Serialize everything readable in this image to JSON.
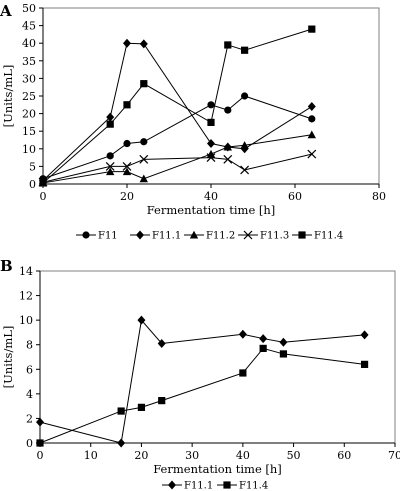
{
  "chart_data": [
    {
      "type": "line",
      "panel_label": "A",
      "xlabel": "Fermentation time [h]",
      "ylabel": "[Units/mL]",
      "xlim": [
        0,
        80
      ],
      "ylim": [
        0,
        50
      ],
      "xticks": [
        0,
        20,
        40,
        60,
        80
      ],
      "yticks": [
        0,
        5,
        10,
        15,
        20,
        25,
        30,
        35,
        40,
        45,
        50
      ],
      "grid": false,
      "legend_position": "bottom",
      "series": [
        {
          "name": "F11",
          "marker": "circle",
          "x": [
            0,
            16,
            20,
            24,
            40,
            44,
            48,
            64
          ],
          "y": [
            1.5,
            8,
            11.5,
            12,
            22.5,
            21,
            25,
            18.5
          ]
        },
        {
          "name": "F11.1",
          "marker": "diamond",
          "x": [
            0,
            16,
            20,
            24,
            40,
            44,
            48,
            64
          ],
          "y": [
            1,
            19,
            40,
            39.8,
            11.5,
            10.5,
            10,
            22
          ]
        },
        {
          "name": "F11.2",
          "marker": "triangle",
          "x": [
            0,
            16,
            20,
            24,
            40,
            44,
            48,
            64
          ],
          "y": [
            0.3,
            3.5,
            3.5,
            1.5,
            8.5,
            10.5,
            11,
            14
          ]
        },
        {
          "name": "F11.3",
          "marker": "x",
          "x": [
            0,
            16,
            20,
            24,
            40,
            44,
            48,
            64
          ],
          "y": [
            0.5,
            5,
            5,
            7,
            7.5,
            7,
            4,
            8.5
          ]
        },
        {
          "name": "F11.4",
          "marker": "square",
          "x": [
            0,
            16,
            20,
            24,
            40,
            44,
            48,
            64
          ],
          "y": [
            0.3,
            17,
            22.5,
            28.5,
            17.5,
            39.5,
            38,
            44
          ]
        }
      ]
    },
    {
      "type": "line",
      "panel_label": "B",
      "xlabel": "Fermentation time [h]",
      "ylabel": "[Units/mL]",
      "xlim": [
        0,
        70
      ],
      "ylim": [
        0,
        14
      ],
      "xticks": [
        0,
        10,
        20,
        30,
        40,
        50,
        60,
        70
      ],
      "yticks": [
        0,
        2,
        4,
        6,
        8,
        10,
        12,
        14
      ],
      "grid": false,
      "legend_position": "bottom",
      "series": [
        {
          "name": "F11.1",
          "marker": "diamond",
          "x": [
            0,
            16,
            20,
            24,
            40,
            44,
            48,
            64
          ],
          "y": [
            1.7,
            0,
            10,
            8.1,
            8.85,
            8.5,
            8.2,
            8.8
          ]
        },
        {
          "name": "F11.4",
          "marker": "square",
          "x": [
            0,
            16,
            20,
            24,
            40,
            44,
            48,
            64
          ],
          "y": [
            0,
            2.6,
            2.9,
            3.45,
            5.7,
            7.7,
            7.25,
            6.4
          ]
        }
      ]
    }
  ]
}
